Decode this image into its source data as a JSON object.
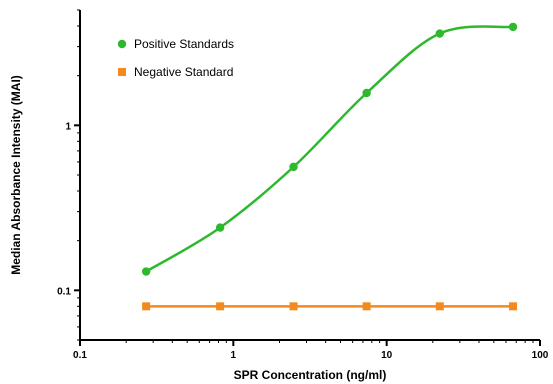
{
  "chart_data": {
    "type": "line",
    "title": "",
    "xlabel": "SPR Concentration (ng/ml)",
    "ylabel": "Median Absorbance Intensity (MAI)",
    "xscale": "log",
    "yscale": "log",
    "xlim": [
      0.1,
      100
    ],
    "ylim": [
      0.05,
      5
    ],
    "x_ticks": [
      0.1,
      1,
      10,
      100
    ],
    "x_tick_labels": [
      "0.1",
      "1",
      "10",
      "100"
    ],
    "y_ticks": [
      0.1,
      1
    ],
    "y_tick_labels": [
      "0.1",
      "1"
    ],
    "grid": false,
    "legend_position": "top-left",
    "series": [
      {
        "name": "Positive Standards",
        "color": "#2db82d",
        "marker": "circle",
        "x": [
          0.27,
          0.82,
          2.47,
          7.4,
          22.2,
          66.7
        ],
        "y": [
          0.13,
          0.24,
          0.56,
          1.57,
          3.6,
          3.95
        ]
      },
      {
        "name": "Negative Standard",
        "color": "#f28a1e",
        "marker": "square",
        "x": [
          0.27,
          0.82,
          2.47,
          7.4,
          22.2,
          66.7
        ],
        "y": [
          0.08,
          0.08,
          0.08,
          0.08,
          0.08,
          0.08
        ]
      }
    ]
  }
}
